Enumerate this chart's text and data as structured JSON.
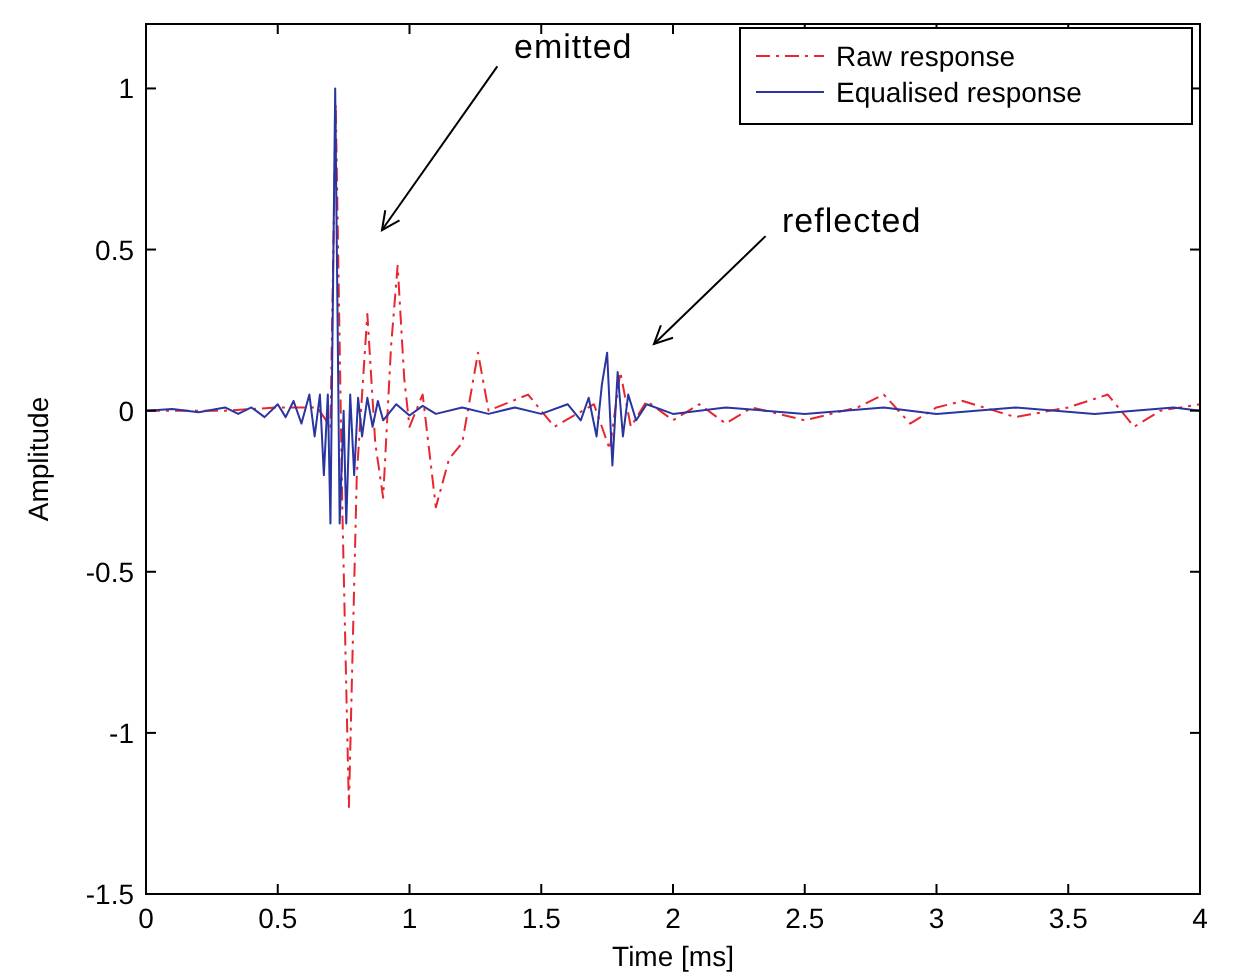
{
  "chart_data": {
    "type": "line",
    "xlabel": "Time [ms]",
    "ylabel": "Amplitude",
    "xlim": [
      0,
      4
    ],
    "ylim": [
      -1.5,
      1.2
    ],
    "xticks": [
      0,
      0.5,
      1,
      1.5,
      2,
      2.5,
      3,
      3.5,
      4
    ],
    "yticks": [
      -1.5,
      -1,
      -0.5,
      0,
      0.5,
      1
    ],
    "grid": false,
    "legend": "top right",
    "series": [
      {
        "name": "Raw response",
        "color": "#e8262f",
        "line_style": "dashed",
        "x": [
          0,
          0.3,
          0.5,
          0.65,
          0.7,
          0.72,
          0.745,
          0.77,
          0.8,
          0.84,
          0.87,
          0.9,
          0.93,
          0.955,
          0.98,
          1.0,
          1.05,
          1.1,
          1.15,
          1.2,
          1.26,
          1.3,
          1.45,
          1.55,
          1.7,
          1.76,
          1.8,
          1.84,
          1.9,
          2.0,
          2.1,
          2.2,
          2.3,
          2.5,
          2.7,
          2.8,
          2.9,
          3.0,
          3.1,
          3.3,
          3.5,
          3.65,
          3.75,
          3.85,
          4.0
        ],
        "values": [
          0,
          0,
          0.01,
          0.01,
          -0.05,
          0.95,
          -0.3,
          -1.23,
          -0.2,
          0.3,
          -0.1,
          -0.27,
          0.2,
          0.45,
          0.1,
          -0.05,
          0.05,
          -0.3,
          -0.15,
          -0.1,
          0.18,
          0,
          0.05,
          -0.05,
          0.02,
          -0.12,
          0.12,
          -0.05,
          0.03,
          -0.03,
          0.02,
          -0.04,
          0.01,
          -0.03,
          0.01,
          0.05,
          -0.04,
          0.01,
          0.03,
          -0.02,
          0.01,
          0.05,
          -0.05,
          0,
          0.02
        ]
      },
      {
        "name": "Equalised response",
        "color": "#2a35a0",
        "line_style": "solid",
        "x": [
          0,
          0.1,
          0.2,
          0.3,
          0.35,
          0.4,
          0.45,
          0.5,
          0.53,
          0.56,
          0.59,
          0.62,
          0.64,
          0.66,
          0.675,
          0.69,
          0.7,
          0.718,
          0.735,
          0.75,
          0.76,
          0.775,
          0.79,
          0.805,
          0.82,
          0.84,
          0.86,
          0.88,
          0.9,
          0.95,
          1.0,
          1.05,
          1.1,
          1.2,
          1.3,
          1.4,
          1.5,
          1.6,
          1.65,
          1.68,
          1.71,
          1.73,
          1.75,
          1.77,
          1.79,
          1.81,
          1.83,
          1.86,
          1.9,
          2.0,
          2.2,
          2.5,
          2.8,
          3.0,
          3.3,
          3.6,
          3.9,
          4.0
        ],
        "values": [
          0,
          0.005,
          -0.005,
          0.01,
          -0.01,
          0.01,
          -0.02,
          0.02,
          -0.02,
          0.03,
          -0.04,
          0.05,
          -0.08,
          0.05,
          -0.2,
          0.05,
          -0.35,
          1,
          -0.35,
          0,
          -0.35,
          0.05,
          -0.2,
          0.04,
          -0.08,
          0.04,
          -0.05,
          0.03,
          -0.03,
          0.02,
          -0.015,
          0.015,
          -0.01,
          0.01,
          -0.01,
          0.01,
          -0.01,
          0.02,
          -0.03,
          0.04,
          -0.08,
          0.08,
          0.18,
          -0.17,
          0.12,
          -0.08,
          0.05,
          -0.03,
          0.02,
          -0.01,
          0.01,
          -0.01,
          0.01,
          -0.01,
          0.01,
          -0.01,
          0.01,
          0
        ]
      }
    ],
    "annotations": [
      "emitted",
      "reflected"
    ]
  }
}
